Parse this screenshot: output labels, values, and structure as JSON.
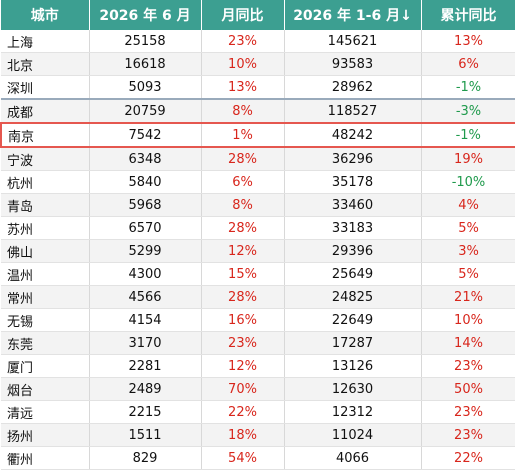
{
  "table": {
    "header": [
      "城市",
      "2026 年 6 月",
      "月同比",
      "2026 年 1-6 月↓",
      "累计同比"
    ],
    "rows": [
      [
        "上海",
        "25158",
        "23%",
        "145621",
        "13%"
      ],
      [
        "北京",
        "16618",
        "10%",
        "93583",
        "6%"
      ],
      [
        "深圳",
        "5093",
        "13%",
        "28962",
        "-1%"
      ],
      [
        "成都",
        "20759",
        "8%",
        "118527",
        "-3%"
      ],
      [
        "南京",
        "7542",
        "1%",
        "48242",
        "-1%"
      ],
      [
        "宁波",
        "6348",
        "28%",
        "36296",
        "19%"
      ],
      [
        "杭州",
        "5840",
        "6%",
        "35178",
        "-10%"
      ],
      [
        "青岛",
        "5968",
        "8%",
        "33460",
        "4%"
      ],
      [
        "苏州",
        "6570",
        "28%",
        "33183",
        "5%"
      ],
      [
        "佛山",
        "5299",
        "12%",
        "29396",
        "3%"
      ],
      [
        "温州",
        "4300",
        "15%",
        "25649",
        "5%"
      ],
      [
        "常州",
        "4566",
        "28%",
        "24825",
        "21%"
      ],
      [
        "无锡",
        "4154",
        "16%",
        "22649",
        "10%"
      ],
      [
        "东莞",
        "3170",
        "23%",
        "17287",
        "14%"
      ],
      [
        "厦门",
        "2281",
        "12%",
        "13126",
        "23%"
      ],
      [
        "烟台",
        "2489",
        "70%",
        "12630",
        "50%"
      ],
      [
        "清远",
        "2215",
        "22%",
        "12312",
        "23%"
      ],
      [
        "扬州",
        "1511",
        "18%",
        "11024",
        "23%"
      ],
      [
        "衢州",
        "829",
        "54%",
        "4066",
        "22%"
      ]
    ]
  }
}
